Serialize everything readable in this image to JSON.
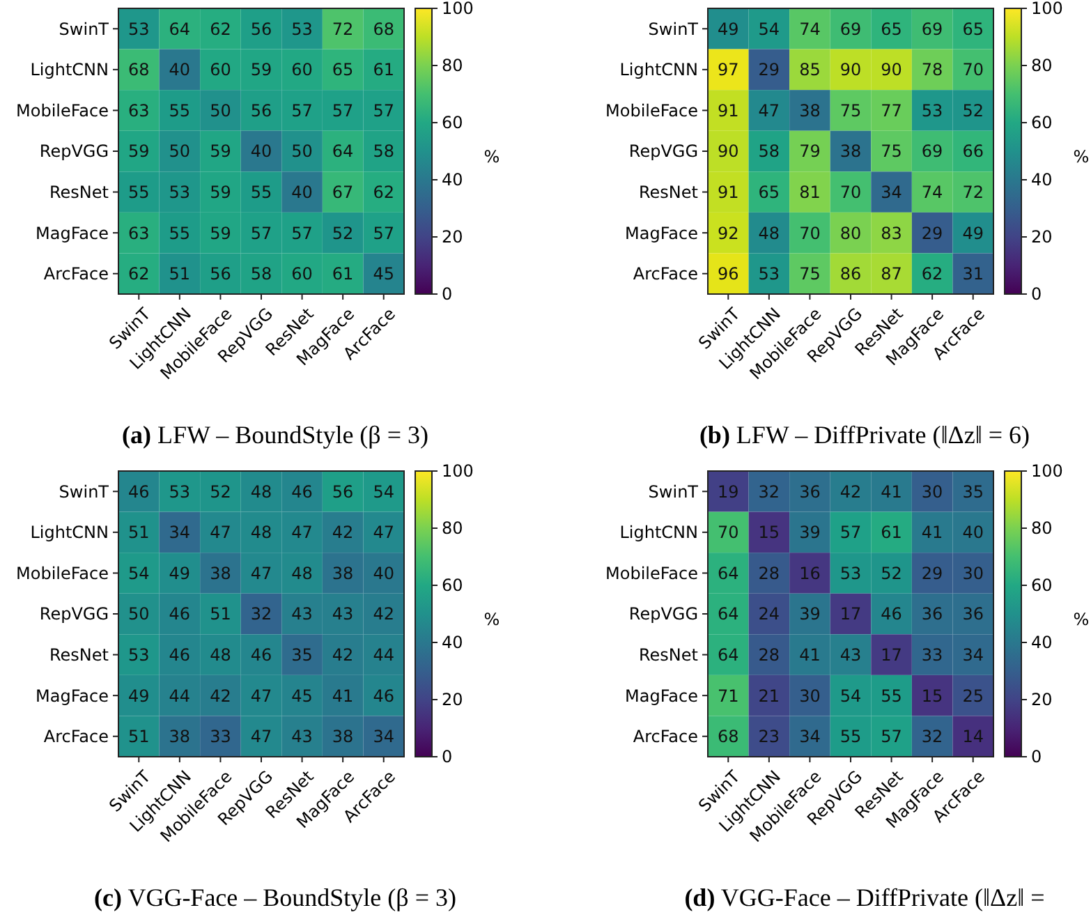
{
  "chart_data": [
    {
      "type": "heatmap",
      "title": "(a) LFW – BoundStyle (β = 3)",
      "clabel": "%",
      "categories": [
        "SwinT",
        "LightCNN",
        "MobileFace",
        "RepVGG",
        "ResNet",
        "MagFace",
        "ArcFace"
      ],
      "y_categories": [
        "SwinT",
        "LightCNN",
        "MobileFace",
        "RepVGG",
        "ResNet",
        "MagFace",
        "ArcFace"
      ],
      "clim": [
        0,
        100
      ],
      "cticks": [
        0,
        20,
        40,
        60,
        80,
        100
      ],
      "data_labels": true,
      "cells": [
        [
          53,
          64,
          62,
          56,
          53,
          72,
          68
        ],
        [
          68,
          40,
          60,
          59,
          60,
          65,
          61
        ],
        [
          63,
          55,
          50,
          56,
          57,
          57,
          57
        ],
        [
          59,
          50,
          59,
          40,
          50,
          64,
          58
        ],
        [
          55,
          53,
          59,
          55,
          40,
          67,
          62
        ],
        [
          63,
          55,
          59,
          57,
          57,
          52,
          57
        ],
        [
          62,
          51,
          56,
          58,
          60,
          61,
          45
        ]
      ]
    },
    {
      "type": "heatmap",
      "title": "(b) LFW – DiffPrivate (‖Δz‖ = 6)",
      "clabel": "%",
      "categories": [
        "SwinT",
        "LightCNN",
        "MobileFace",
        "RepVGG",
        "ResNet",
        "MagFace",
        "ArcFace"
      ],
      "y_categories": [
        "SwinT",
        "LightCNN",
        "MobileFace",
        "RepVGG",
        "ResNet",
        "MagFace",
        "ArcFace"
      ],
      "clim": [
        0,
        100
      ],
      "cticks": [
        0,
        20,
        40,
        60,
        80,
        100
      ],
      "data_labels": true,
      "cells": [
        [
          49,
          54,
          74,
          69,
          65,
          69,
          65
        ],
        [
          97,
          29,
          85,
          90,
          90,
          78,
          70
        ],
        [
          91,
          47,
          38,
          75,
          77,
          53,
          52
        ],
        [
          90,
          58,
          79,
          38,
          75,
          69,
          66
        ],
        [
          91,
          65,
          81,
          70,
          34,
          74,
          72
        ],
        [
          92,
          48,
          70,
          80,
          83,
          29,
          49
        ],
        [
          96,
          53,
          75,
          86,
          87,
          62,
          31
        ]
      ]
    },
    {
      "type": "heatmap",
      "title": "(c) VGG-Face – BoundStyle (β = 3)",
      "clabel": "%",
      "categories": [
        "SwinT",
        "LightCNN",
        "MobileFace",
        "RepVGG",
        "ResNet",
        "MagFace",
        "ArcFace"
      ],
      "y_categories": [
        "SwinT",
        "LightCNN",
        "MobileFace",
        "RepVGG",
        "ResNet",
        "MagFace",
        "ArcFace"
      ],
      "clim": [
        0,
        100
      ],
      "cticks": [
        0,
        20,
        40,
        60,
        80,
        100
      ],
      "data_labels": true,
      "cells": [
        [
          46,
          53,
          52,
          48,
          46,
          56,
          54
        ],
        [
          51,
          34,
          47,
          48,
          47,
          42,
          47
        ],
        [
          54,
          49,
          38,
          47,
          48,
          38,
          40
        ],
        [
          50,
          46,
          51,
          32,
          43,
          43,
          42
        ],
        [
          53,
          46,
          48,
          46,
          35,
          42,
          44
        ],
        [
          49,
          44,
          42,
          47,
          45,
          41,
          46
        ],
        [
          51,
          38,
          33,
          47,
          43,
          38,
          34
        ]
      ]
    },
    {
      "type": "heatmap",
      "title": "(d) VGG-Face – DiffPrivate (‖Δz‖ =",
      "clabel": "%",
      "categories": [
        "SwinT",
        "LightCNN",
        "MobileFace",
        "RepVGG",
        "ResNet",
        "MagFace",
        "ArcFace"
      ],
      "y_categories": [
        "SwinT",
        "LightCNN",
        "MobileFace",
        "RepVGG",
        "ResNet",
        "MagFace",
        "ArcFace"
      ],
      "clim": [
        0,
        100
      ],
      "cticks": [
        0,
        20,
        40,
        60,
        80,
        100
      ],
      "data_labels": true,
      "cells": [
        [
          19,
          32,
          36,
          42,
          41,
          30,
          35
        ],
        [
          70,
          15,
          39,
          57,
          61,
          41,
          40
        ],
        [
          64,
          28,
          16,
          53,
          52,
          29,
          30
        ],
        [
          64,
          24,
          39,
          17,
          46,
          36,
          36
        ],
        [
          64,
          28,
          41,
          43,
          17,
          33,
          34
        ],
        [
          71,
          21,
          30,
          54,
          55,
          15,
          25
        ],
        [
          68,
          23,
          34,
          55,
          57,
          32,
          14
        ]
      ]
    }
  ]
}
